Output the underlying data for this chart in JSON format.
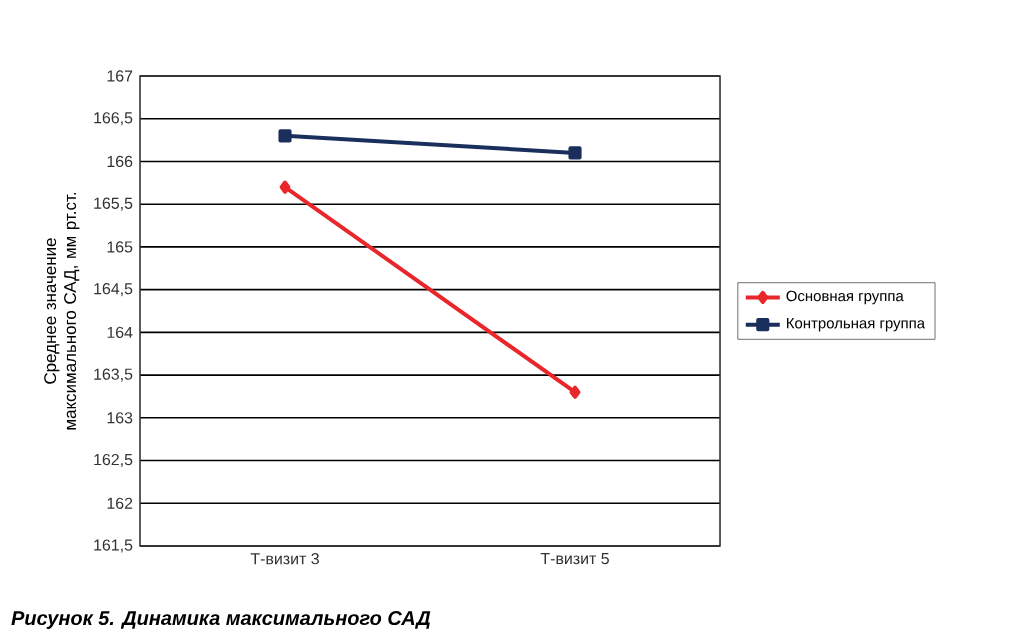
{
  "chart_data": {
    "type": "line",
    "title": "Рисунок 5. Динамика максимального САД",
    "ylabel": "Среднее значение максимального САД, мм рт.ст.",
    "categories": [
      "Т-визит 3",
      "Т-визит 5"
    ],
    "series": [
      {
        "name": "Основная группа",
        "color": "#e8262b",
        "marker": "diamond",
        "values": [
          165.7,
          163.3
        ]
      },
      {
        "name": "Контрольная группа",
        "color": "#1b2f5c",
        "marker": "square",
        "values": [
          166.3,
          166.1
        ]
      }
    ],
    "ylim": [
      161.5,
      167
    ],
    "yticks": [
      {
        "value": 161.5,
        "label": "161,5"
      },
      {
        "value": 162,
        "label": "162"
      },
      {
        "value": 162.5,
        "label": "162,5"
      },
      {
        "value": 163,
        "label": "163"
      },
      {
        "value": 163.5,
        "label": "163,5"
      },
      {
        "value": 164,
        "label": "164"
      },
      {
        "value": 164.5,
        "label": "164,5"
      },
      {
        "value": 165,
        "label": "165"
      },
      {
        "value": 165.5,
        "label": "165,5"
      },
      {
        "value": 166,
        "label": "166"
      },
      {
        "value": 166.5,
        "label": "166,5"
      },
      {
        "value": 167,
        "label": "167"
      }
    ],
    "grid": "y",
    "legend": "right",
    "line_style": "solid"
  }
}
